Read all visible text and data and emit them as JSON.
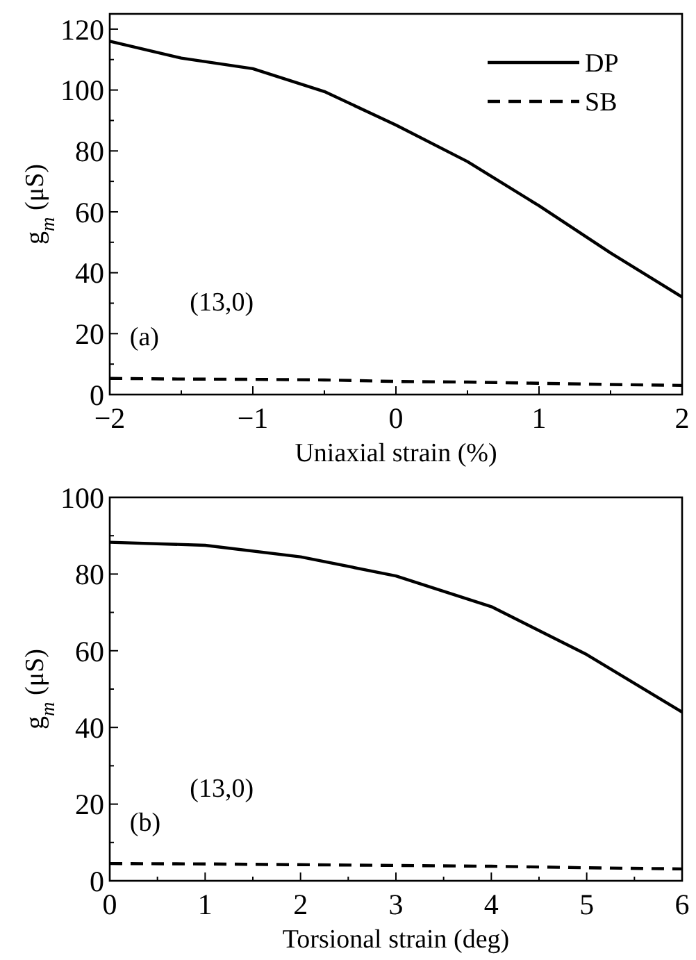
{
  "chart_data": [
    {
      "type": "line",
      "xlabel": "Uniaxial strain (%)",
      "ylabel": "g$_{m}$ (μS)",
      "legend": "top right",
      "annotations": [
        "(13,0)",
        "(a)"
      ],
      "x": [
        -2,
        -1.5,
        -1,
        -0.5,
        0,
        0.5,
        1,
        1.5,
        2
      ],
      "series": [
        {
          "name": "DP",
          "color": "#000000",
          "line_style": "solid",
          "values": [
            116,
            110.5,
            107,
            99.5,
            88.5,
            76.5,
            62,
            46.5,
            32
          ]
        },
        {
          "name": "SB",
          "color": "#000000",
          "line_style": "dashed",
          "values": [
            5.3,
            5.1,
            5,
            4.8,
            4.3,
            4.1,
            3.7,
            3.3,
            3
          ]
        }
      ],
      "xlim": [
        -2,
        2
      ],
      "xticks": [
        -2,
        {
          "value": -1.5,
          "label": null
        },
        -1,
        {
          "value": -0.5,
          "label": null
        },
        0,
        {
          "value": 0.5,
          "label": null
        },
        1,
        {
          "value": 1.5,
          "label": null
        },
        2
      ],
      "ylim": [
        0,
        125
      ],
      "yticks": [
        0,
        {
          "value": 10,
          "label": null
        },
        20,
        {
          "value": 30,
          "label": null
        },
        40,
        {
          "value": 50,
          "label": null
        },
        60,
        {
          "value": 70,
          "label": null
        },
        80,
        {
          "value": 90,
          "label": null
        },
        100,
        {
          "value": 110,
          "label": null
        },
        120
      ],
      "grid": false,
      "marker": "none"
    },
    {
      "type": "line",
      "xlabel": "Torsional strain (deg)",
      "ylabel": "g$_{m}$ (μS)",
      "annotations": [
        "(13,0)",
        "(b)"
      ],
      "x": [
        0,
        1,
        2,
        3,
        4,
        5,
        6
      ],
      "series": [
        {
          "color": "#000000",
          "line_style": "solid",
          "values": [
            88.3,
            87.5,
            84.5,
            79.5,
            71.5,
            59,
            44
          ]
        },
        {
          "color": "#000000",
          "line_style": "dashed",
          "values": [
            4.5,
            4.4,
            4.2,
            4,
            3.8,
            3.4,
            3.1
          ]
        }
      ],
      "xlim": [
        0,
        6
      ],
      "xticks": [
        0,
        {
          "value": 0.5,
          "label": null
        },
        1,
        {
          "value": 1.5,
          "label": null
        },
        2,
        {
          "value": 2.5,
          "label": null
        },
        3,
        {
          "value": 3.5,
          "label": null
        },
        4,
        {
          "value": 4.5,
          "label": null
        },
        5,
        {
          "value": 5.5,
          "label": null
        },
        6
      ],
      "ylim": [
        0,
        100
      ],
      "yticks": [
        0,
        {
          "value": 10,
          "label": null
        },
        20,
        {
          "value": 30,
          "label": null
        },
        40,
        {
          "value": 50,
          "label": null
        },
        60,
        {
          "value": 70,
          "label": null
        },
        80,
        {
          "value": 90,
          "label": null
        },
        100
      ],
      "grid": false,
      "marker": "none"
    }
  ]
}
